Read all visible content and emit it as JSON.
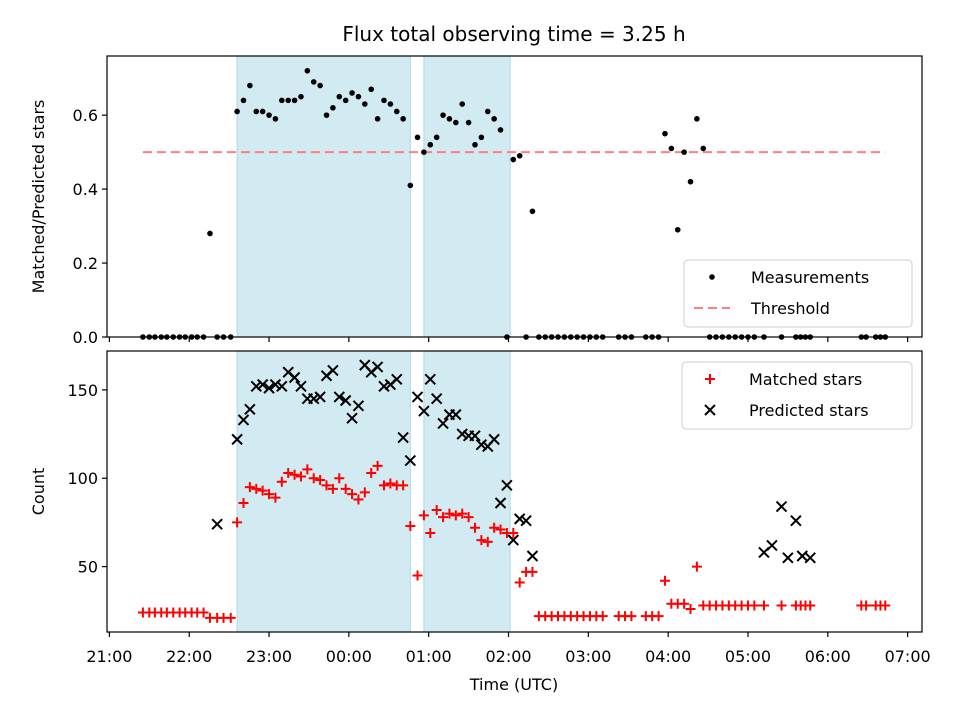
{
  "chart_data": {
    "title": "Flux total observing time = 3.25 h",
    "type": "scatter",
    "xlabel": "Time (UTC)",
    "x_tick_labels": [
      "21:00",
      "22:00",
      "23:00",
      "00:00",
      "01:00",
      "02:00",
      "03:00",
      "04:00",
      "05:00",
      "06:00",
      "07:00"
    ],
    "x_tick_hours": [
      0,
      1,
      2,
      3,
      4,
      5,
      6,
      7,
      8,
      9,
      10
    ],
    "xlim_hours_from_21_00": [
      -0.03,
      10.18
    ],
    "shaded_intervals_hours": [
      [
        1.6,
        3.77
      ],
      [
        3.94,
        5.02
      ]
    ],
    "shade_color": "#add8e6",
    "panels": [
      {
        "ylabel": "Matched/Predicted stars",
        "ylim": [
          0,
          0.76
        ],
        "yticks": [
          0.0,
          0.2,
          0.4,
          0.6
        ],
        "ytick_labels": [
          "0.0",
          "0.2",
          "0.4",
          "0.6"
        ],
        "threshold": {
          "name": "Threshold",
          "y": 0.5,
          "x_start": 0.42,
          "x_end": 9.72,
          "color": "#ff7f7f"
        },
        "legend": [
          "Measurements",
          "Threshold"
        ],
        "series": [
          {
            "name": "Measurements",
            "marker": "dot",
            "color": "#000000",
            "x": [
              0.42,
              0.5,
              0.57,
              0.65,
              0.72,
              0.8,
              0.88,
              0.95,
              1.03,
              1.1,
              1.18,
              1.26,
              1.35,
              1.43,
              1.52,
              1.6,
              1.68,
              1.76,
              1.84,
              1.92,
              2.0,
              2.08,
              2.16,
              2.24,
              2.32,
              2.4,
              2.48,
              2.56,
              2.64,
              2.72,
              2.8,
              2.88,
              2.96,
              3.04,
              3.12,
              3.2,
              3.28,
              3.36,
              3.44,
              3.52,
              3.6,
              3.68,
              3.77,
              3.86,
              3.94,
              4.02,
              4.1,
              4.18,
              4.26,
              4.34,
              4.42,
              4.5,
              4.58,
              4.66,
              4.74,
              4.82,
              4.9,
              4.98,
              5.06,
              5.14,
              5.22,
              5.3,
              5.38,
              5.46,
              5.54,
              5.62,
              5.7,
              5.78,
              5.86,
              5.94,
              6.02,
              6.1,
              6.18,
              6.38,
              6.46,
              6.54,
              6.72,
              6.8,
              6.88,
              6.96,
              7.04,
              7.12,
              7.2,
              7.28,
              7.36,
              7.44,
              7.52,
              7.6,
              7.68,
              7.76,
              7.84,
              7.92,
              8.0,
              8.08,
              8.2,
              8.42,
              8.6,
              8.66,
              8.72,
              8.78,
              9.42,
              9.48,
              9.6,
              9.66,
              9.72
            ],
            "y": [
              0,
              0,
              0,
              0,
              0,
              0,
              0,
              0,
              0,
              0,
              0,
              0.28,
              0,
              0,
              0,
              0.61,
              0.64,
              0.68,
              0.61,
              0.61,
              0.6,
              0.59,
              0.64,
              0.64,
              0.64,
              0.65,
              0.72,
              0.69,
              0.68,
              0.6,
              0.62,
              0.65,
              0.64,
              0.66,
              0.65,
              0.63,
              0.67,
              0.59,
              0.64,
              0.63,
              0.61,
              0.59,
              0.41,
              0.54,
              0.5,
              0.52,
              0.54,
              0.6,
              0.59,
              0.58,
              0.63,
              0.58,
              0.52,
              0.54,
              0.61,
              0.59,
              0.56,
              0,
              0.48,
              0.49,
              0,
              0.34,
              0,
              0,
              0,
              0,
              0,
              0,
              0,
              0,
              0,
              0,
              0,
              0,
              0,
              0,
              0,
              0,
              0,
              0.55,
              0.51,
              0.29,
              0.5,
              0.42,
              0.59,
              0.51,
              0,
              0,
              0,
              0,
              0,
              0,
              0,
              0,
              0,
              0,
              0,
              0,
              0,
              0,
              0,
              0,
              0,
              0,
              0
            ]
          }
        ]
      },
      {
        "ylabel": "Count",
        "ylim": [
          13,
          172
        ],
        "yticks": [
          50,
          100,
          150
        ],
        "ytick_labels": [
          "50",
          "100",
          "150"
        ],
        "legend": [
          "Matched stars",
          "Predicted stars"
        ],
        "series": [
          {
            "name": "Matched stars",
            "marker": "plus",
            "color": "#ff0000",
            "x": [
              0.42,
              0.5,
              0.57,
              0.65,
              0.72,
              0.8,
              0.88,
              0.95,
              1.03,
              1.1,
              1.18,
              1.26,
              1.35,
              1.43,
              1.52,
              1.6,
              1.68,
              1.76,
              1.84,
              1.92,
              2.0,
              2.08,
              2.16,
              2.24,
              2.32,
              2.4,
              2.48,
              2.56,
              2.64,
              2.72,
              2.8,
              2.88,
              2.96,
              3.04,
              3.12,
              3.2,
              3.28,
              3.36,
              3.44,
              3.52,
              3.6,
              3.68,
              3.77,
              3.86,
              3.94,
              4.02,
              4.1,
              4.18,
              4.26,
              4.34,
              4.42,
              4.5,
              4.58,
              4.66,
              4.74,
              4.82,
              4.9,
              4.98,
              5.06,
              5.14,
              5.22,
              5.3,
              5.38,
              5.46,
              5.54,
              5.62,
              5.7,
              5.78,
              5.86,
              5.94,
              6.02,
              6.1,
              6.18,
              6.38,
              6.46,
              6.54,
              6.72,
              6.8,
              6.88,
              6.96,
              7.04,
              7.12,
              7.2,
              7.28,
              7.36,
              7.44,
              7.52,
              7.6,
              7.68,
              7.76,
              7.84,
              7.92,
              8.0,
              8.08,
              8.2,
              8.42,
              8.6,
              8.66,
              8.72,
              8.78,
              9.42,
              9.48,
              9.6,
              9.66,
              9.72
            ],
            "y": [
              24,
              24,
              24,
              24,
              24,
              24,
              24,
              24,
              24,
              24,
              24,
              21,
              21,
              21,
              21,
              75,
              86,
              95,
              94,
              93,
              91,
              89,
              98,
              103,
              102,
              101,
              105,
              100,
              99,
              96,
              94,
              100,
              94,
              91,
              88,
              92,
              103,
              107,
              96,
              97,
              96,
              96,
              73,
              45,
              79,
              69,
              82,
              78,
              80,
              79,
              80,
              78,
              72,
              65,
              64,
              72,
              71,
              69,
              69,
              41,
              47,
              47,
              22,
              22,
              22,
              22,
              22,
              22,
              22,
              22,
              22,
              22,
              22,
              22,
              22,
              22,
              22,
              22,
              22,
              42,
              29,
              29,
              29,
              26,
              50,
              28,
              28,
              28,
              28,
              28,
              28,
              28,
              28,
              28,
              28,
              28,
              28,
              28,
              28,
              28,
              28,
              28,
              28,
              28,
              28
            ]
          },
          {
            "name": "Predicted stars",
            "marker": "x",
            "color": "#000000",
            "x": [
              1.35,
              1.6,
              1.68,
              1.76,
              1.84,
              1.92,
              2.0,
              2.08,
              2.16,
              2.24,
              2.32,
              2.4,
              2.48,
              2.56,
              2.64,
              2.72,
              2.8,
              2.88,
              2.96,
              3.04,
              3.12,
              3.2,
              3.28,
              3.36,
              3.44,
              3.52,
              3.6,
              3.68,
              3.77,
              3.86,
              3.94,
              4.02,
              4.1,
              4.18,
              4.26,
              4.34,
              4.42,
              4.5,
              4.58,
              4.66,
              4.74,
              4.82,
              4.9,
              4.98,
              5.06,
              5.14,
              5.22,
              5.3,
              8.2,
              8.3,
              8.42,
              8.5,
              8.6,
              8.68,
              8.78
            ],
            "y": [
              74,
              122,
              133,
              139,
              152,
              153,
              151,
              153,
              152,
              160,
              157,
              152,
              145,
              145,
              146,
              158,
              161,
              146,
              144,
              134,
              141,
              164,
              160,
              163,
              152,
              153,
              156,
              123,
              110,
              146,
              138,
              156,
              145,
              131,
              136,
              136,
              125,
              124,
              124,
              119,
              118,
              122,
              86,
              96,
              65,
              77,
              76,
              56,
              58,
              62,
              84,
              55,
              76,
              56,
              55
            ]
          }
        ]
      }
    ]
  }
}
